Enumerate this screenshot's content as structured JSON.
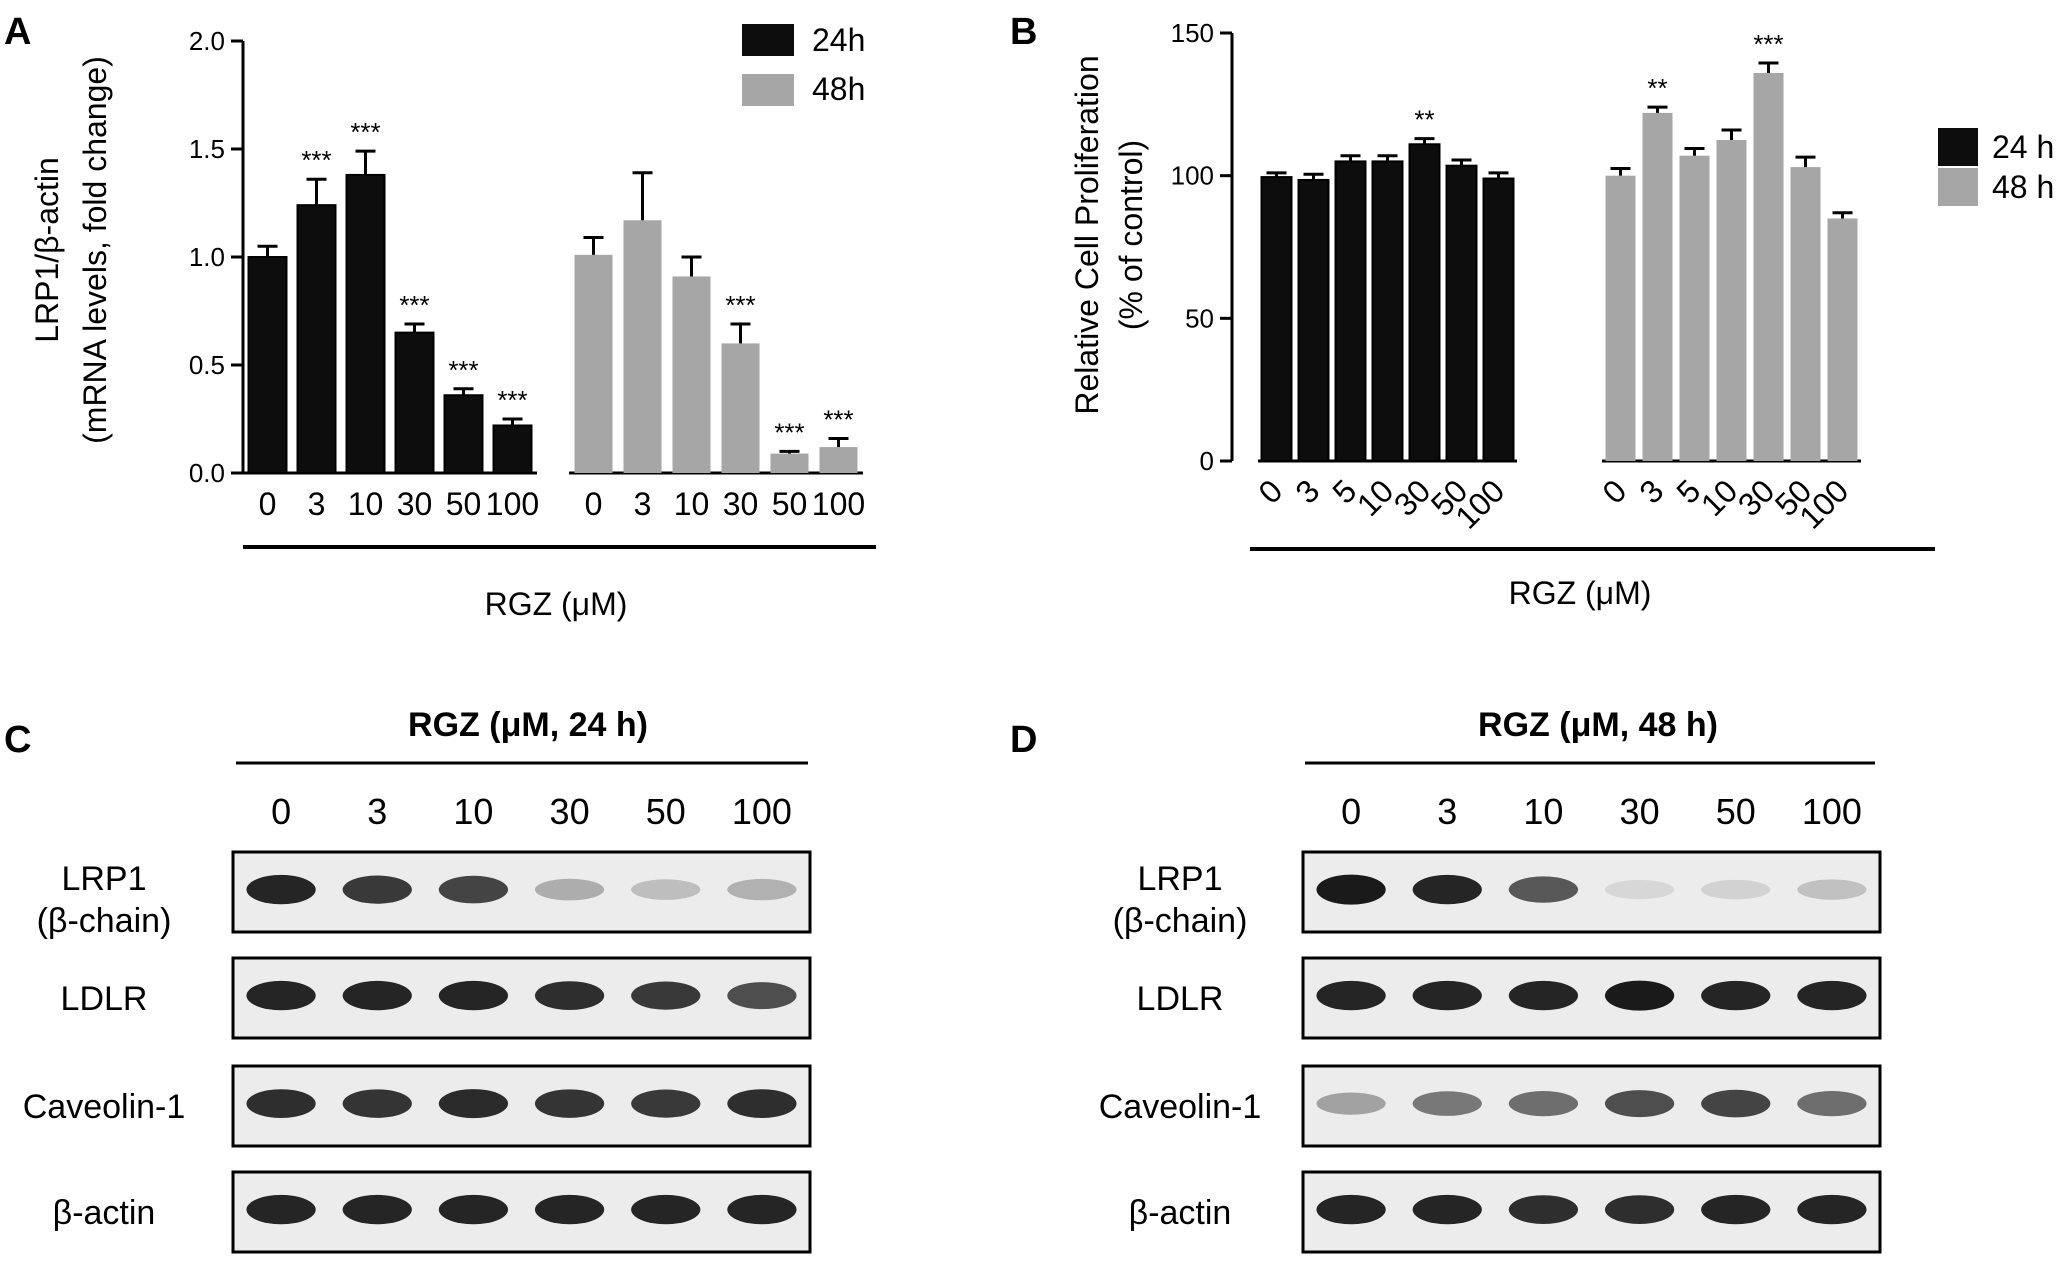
{
  "panels": [
    {
      "id": "A",
      "letter": "A"
    },
    {
      "id": "B",
      "letter": "B"
    },
    {
      "id": "C",
      "letter": "C"
    },
    {
      "id": "D",
      "letter": "D"
    }
  ],
  "colors": {
    "series_24h": "#0d0d0d",
    "series_48h": "#a6a6a6",
    "band": "#1a1a1a"
  },
  "chart_data": [
    {
      "panel": "A",
      "type": "bar",
      "ylabel_line1": "LRP1/β-actin",
      "ylabel_line2": "(mRNA levels, fold change)",
      "xlabel": "RGZ (μM)",
      "ylim": [
        0,
        2.0
      ],
      "yticks": [
        "0.0",
        "0.5",
        "1.0",
        "1.5",
        "2.0"
      ],
      "yticks_values": [
        0,
        0.5,
        1.0,
        1.5,
        2.0
      ],
      "legend_placement": "top-right",
      "categories": [
        "0",
        "3",
        "10",
        "30",
        "50",
        "100"
      ],
      "series": [
        {
          "name": "24h",
          "values": [
            1.0,
            1.24,
            1.38,
            0.65,
            0.36,
            0.22
          ],
          "errors": [
            0.05,
            0.12,
            0.11,
            0.04,
            0.03,
            0.03
          ],
          "significance": [
            "",
            "***",
            "***",
            "***",
            "***",
            "***"
          ]
        },
        {
          "name": "48h",
          "values": [
            1.01,
            1.17,
            0.91,
            0.6,
            0.09,
            0.12
          ],
          "errors": [
            0.08,
            0.22,
            0.09,
            0.09,
            0.01,
            0.04
          ],
          "significance": [
            "",
            "",
            "",
            "***",
            "***",
            "***"
          ]
        }
      ]
    },
    {
      "panel": "B",
      "type": "bar",
      "ylabel_line1": "Relative Cell Proliferation",
      "ylabel_line2": "(% of control)",
      "xlabel": "RGZ (μM)",
      "ylim": [
        0,
        150
      ],
      "yticks": [
        "0",
        "50",
        "100",
        "150"
      ],
      "yticks_values": [
        0,
        50,
        100,
        150
      ],
      "legend_placement": "right",
      "categories": [
        "0",
        "3",
        "5",
        "10",
        "30",
        "50",
        "100"
      ],
      "series": [
        {
          "name": "24 h",
          "values": [
            99.5,
            98.5,
            105,
            105,
            111,
            103.5,
            99
          ],
          "errors": [
            1.5,
            2,
            2,
            2,
            2,
            2,
            2
          ],
          "significance": [
            "",
            "",
            "",
            "",
            "**",
            "",
            ""
          ]
        },
        {
          "name": "48 h",
          "values": [
            100,
            122,
            107,
            112.5,
            136,
            103,
            85
          ],
          "errors": [
            2.5,
            2,
            2.5,
            3.5,
            3.5,
            3.5,
            2
          ],
          "significance": [
            "",
            "**",
            "",
            "",
            "***",
            "",
            ""
          ]
        }
      ]
    }
  ],
  "blots": [
    {
      "panel": "C",
      "title": "RGZ (μM, 24 h)",
      "lanes": [
        "0",
        "3",
        "10",
        "30",
        "50",
        "100"
      ],
      "rows": [
        {
          "label_line1": "LRP1",
          "label_line2": "(β-chain)",
          "intensity": [
            0.95,
            0.85,
            0.8,
            0.3,
            0.22,
            0.28
          ]
        },
        {
          "label_line1": "LDLR",
          "label_line2": "",
          "intensity": [
            0.95,
            0.95,
            0.95,
            0.9,
            0.85,
            0.75
          ]
        },
        {
          "label_line1": "Caveolin-1",
          "label_line2": "",
          "intensity": [
            0.9,
            0.88,
            0.92,
            0.88,
            0.85,
            0.9
          ]
        },
        {
          "label_line1": "β-actin",
          "label_line2": "",
          "intensity": [
            0.95,
            0.95,
            0.95,
            0.95,
            0.95,
            0.95
          ]
        }
      ]
    },
    {
      "panel": "D",
      "title": "RGZ (μM, 48 h)",
      "lanes": [
        "0",
        "3",
        "10",
        "30",
        "50",
        "100"
      ],
      "rows": [
        {
          "label_line1": "LRP1",
          "label_line2": "(β-chain)",
          "intensity": [
            1.0,
            0.95,
            0.7,
            0.1,
            0.12,
            0.2
          ]
        },
        {
          "label_line1": "LDLR",
          "label_line2": "",
          "intensity": [
            0.95,
            0.95,
            0.95,
            1.0,
            0.95,
            0.95
          ]
        },
        {
          "label_line1": "Caveolin-1",
          "label_line2": "",
          "intensity": [
            0.35,
            0.55,
            0.6,
            0.75,
            0.8,
            0.6
          ]
        },
        {
          "label_line1": "β-actin",
          "label_line2": "",
          "intensity": [
            0.95,
            0.95,
            0.9,
            0.9,
            0.95,
            0.95
          ]
        }
      ]
    }
  ]
}
